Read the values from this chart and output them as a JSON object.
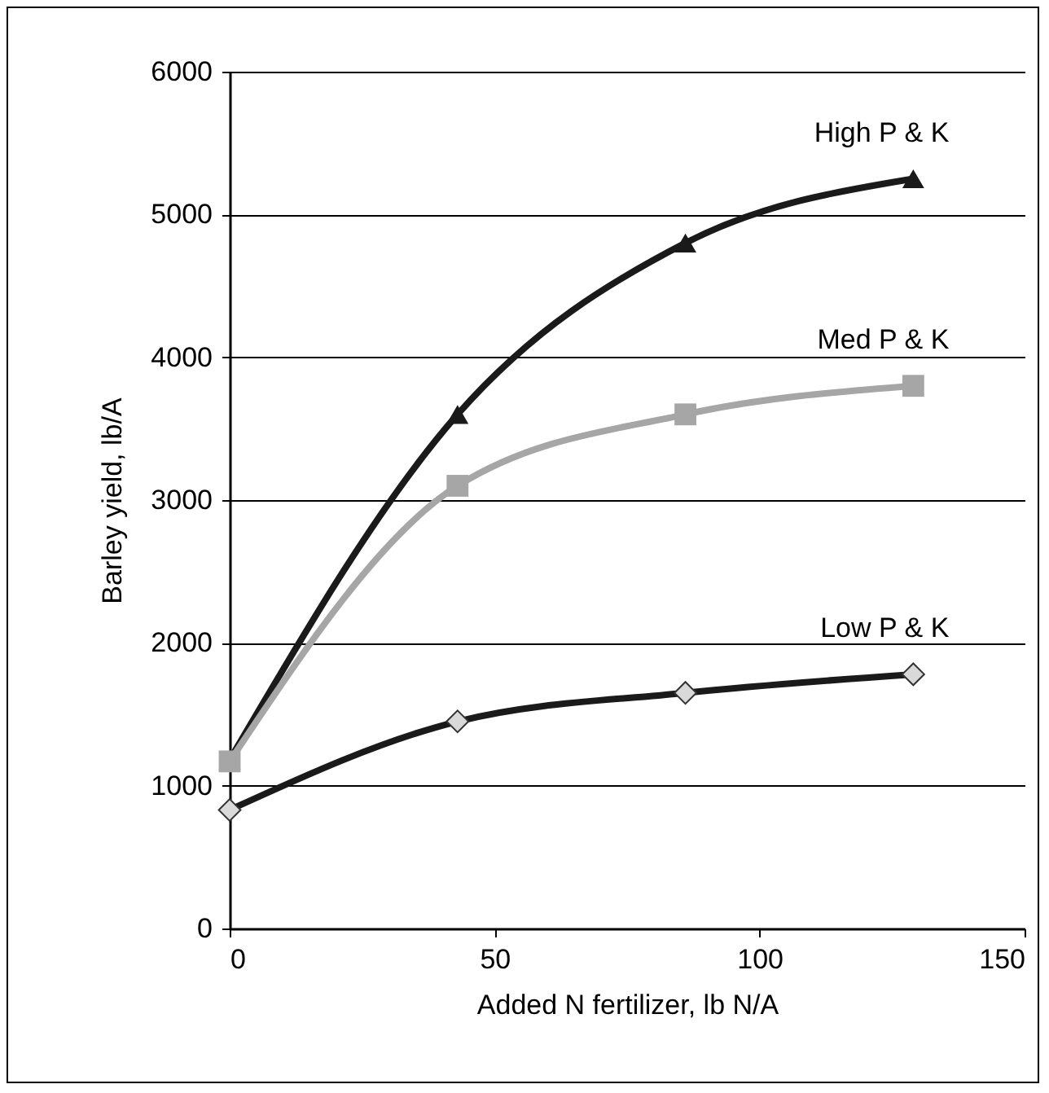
{
  "chart_data": {
    "type": "line",
    "xlabel": "Added N fertilizer, lb N/A",
    "ylabel": "Barley yield, lb/A",
    "x": [
      0,
      43,
      86,
      129
    ],
    "series": [
      {
        "name": "High P & K",
        "color": "#1a1a1a",
        "marker": "triangle",
        "values": [
          1180,
          3600,
          4800,
          5250
        ]
      },
      {
        "name": "Med P & K",
        "color": "#a6a6a6",
        "marker": "square",
        "values": [
          1170,
          3100,
          3600,
          3800
        ]
      },
      {
        "name": "Low P & K",
        "color": "#1a1a1a",
        "marker": "diamond",
        "values": [
          830,
          1450,
          1650,
          1780
        ]
      }
    ],
    "xlim": [
      0,
      150
    ],
    "xticks": [
      0,
      50,
      100,
      150
    ],
    "ylim": [
      0,
      6000
    ],
    "yticks": [
      0,
      1000,
      2000,
      3000,
      4000,
      5000,
      6000
    ],
    "grid": "y",
    "line_style": "solid"
  }
}
